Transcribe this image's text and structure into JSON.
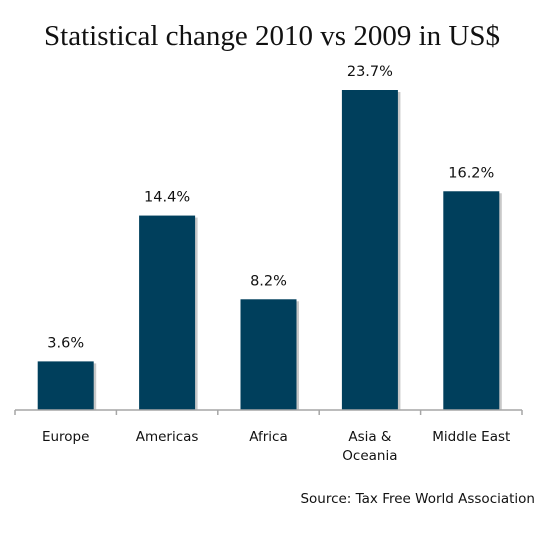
{
  "chart_data": {
    "type": "bar",
    "title": "Statistical change 2010 vs 2009 in US$",
    "categories": [
      [
        "Europe"
      ],
      [
        "Americas"
      ],
      [
        "Africa"
      ],
      [
        "Asia &",
        "Oceania"
      ],
      [
        "Middle East"
      ]
    ],
    "values": [
      3.6,
      14.4,
      8.2,
      23.7,
      16.2
    ],
    "value_labels": [
      "3.6%",
      "14.4%",
      "8.2%",
      "23.7%",
      "16.2%"
    ],
    "source": "Source: Tax Free World Association",
    "ylim": [
      0,
      23.7
    ],
    "grid": false,
    "bar_color": "#003f5c"
  }
}
